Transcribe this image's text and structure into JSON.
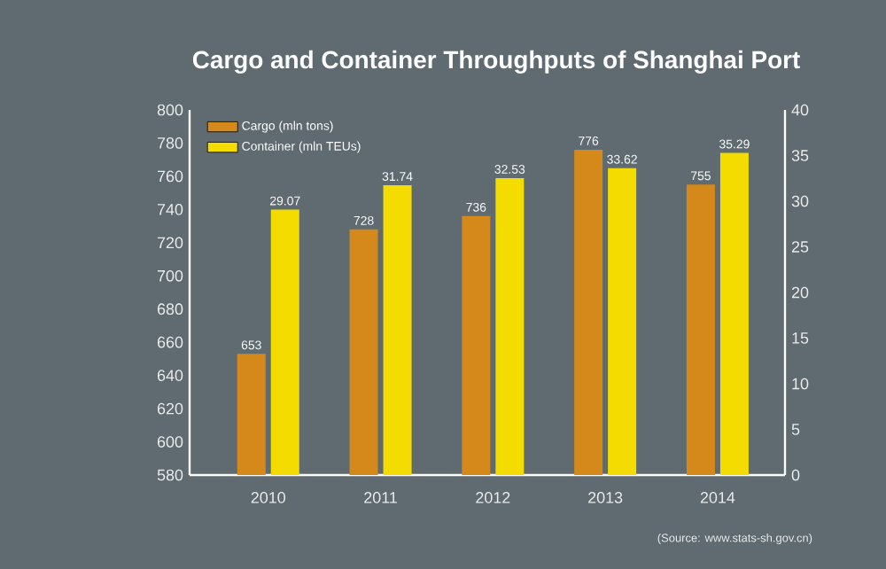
{
  "chart_data": {
    "type": "bar",
    "title": "Cargo and Container Throughputs of Shanghai Port",
    "categories": [
      "2010",
      "2011",
      "2012",
      "2013",
      "2014"
    ],
    "series": [
      {
        "name": "Cargo (mln tons)",
        "color": "#d4891a",
        "values": [
          653,
          728,
          736,
          776,
          755
        ]
      },
      {
        "name": "Container (mln TEUs)",
        "color": "#f5dc00",
        "axis": "y2",
        "values": [
          29.07,
          31.74,
          32.53,
          33.62,
          35.29
        ]
      }
    ],
    "ylim": [
      580,
      800
    ],
    "yticks": [
      580,
      600,
      620,
      640,
      660,
      680,
      700,
      720,
      740,
      760,
      780,
      800
    ],
    "y2lim": [
      0,
      40
    ],
    "y2ticks": [
      0,
      5,
      10,
      15,
      20,
      25,
      30,
      35,
      40
    ],
    "data_labels": true,
    "legend": "top left",
    "annotations": [
      "(Source: www.stats-sh.gov.cn)"
    ]
  }
}
